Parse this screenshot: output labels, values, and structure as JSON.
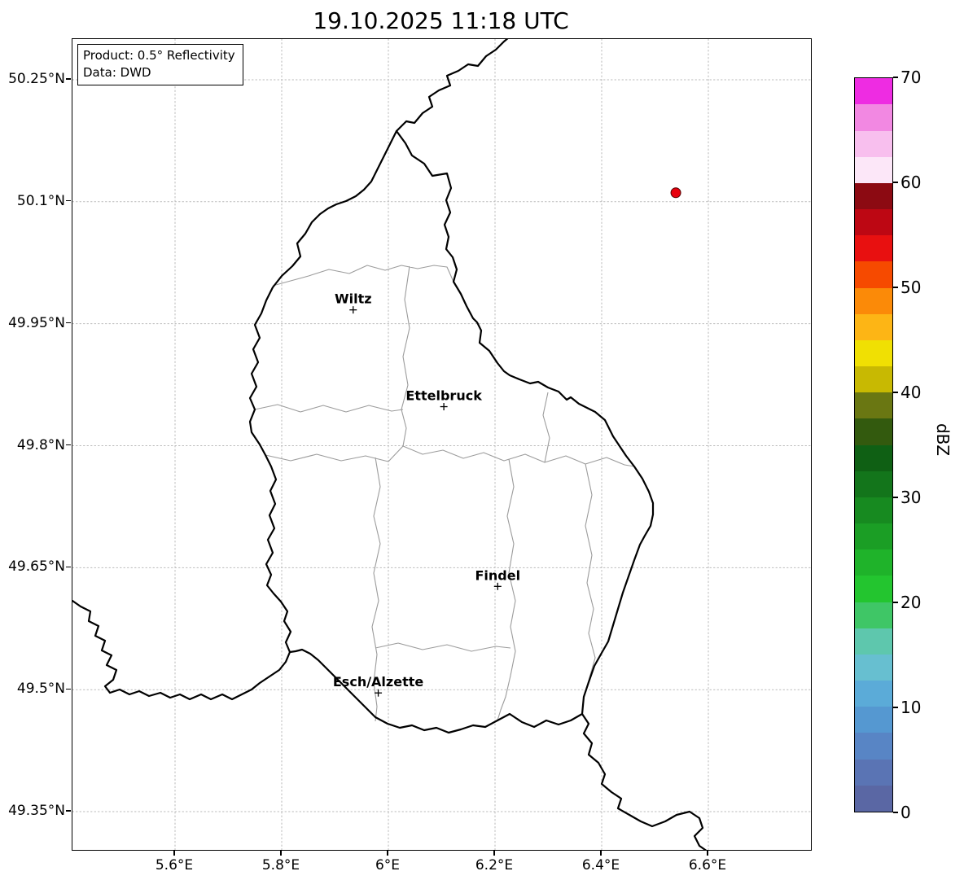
{
  "title": "19.10.2025 11:18 UTC",
  "info_box": {
    "product": "Product: 0.5° Reflectivity",
    "source": "Data: DWD"
  },
  "axes": {
    "y_ticks": [
      {
        "label": "50.25°N",
        "lat": 50.25
      },
      {
        "label": "50.1°N",
        "lat": 50.1
      },
      {
        "label": "49.95°N",
        "lat": 49.95
      },
      {
        "label": "49.8°N",
        "lat": 49.8
      },
      {
        "label": "49.65°N",
        "lat": 49.65
      },
      {
        "label": "49.5°N",
        "lat": 49.5
      },
      {
        "label": "49.35°N",
        "lat": 49.35
      }
    ],
    "x_ticks": [
      {
        "label": "5.6°E",
        "lon": 5.6
      },
      {
        "label": "5.8°E",
        "lon": 5.8
      },
      {
        "label": "6°E",
        "lon": 6.0
      },
      {
        "label": "6.2°E",
        "lon": 6.2
      },
      {
        "label": "6.4°E",
        "lon": 6.4
      },
      {
        "label": "6.6°E",
        "lon": 6.6
      }
    ]
  },
  "cities": [
    {
      "name": "Wiltz",
      "lon": 5.934,
      "lat": 49.967
    },
    {
      "name": "Ettelbruck",
      "lon": 6.104,
      "lat": 49.848
    },
    {
      "name": "Findel",
      "lon": 6.205,
      "lat": 49.627
    },
    {
      "name": "Esch/Alzette",
      "lon": 5.981,
      "lat": 49.496
    }
  ],
  "radar_echoes": [
    {
      "lon": 6.539,
      "lat": 50.111,
      "color": "#e8000d"
    }
  ],
  "colorbar": {
    "label": "dBZ",
    "min": 0,
    "max": 70,
    "step": 2.5,
    "ticks": [
      "0",
      "10",
      "20",
      "30",
      "40",
      "50",
      "60",
      "70"
    ],
    "colors": [
      "#5a67a4",
      "#5a74b4",
      "#5885c5",
      "#5598d1",
      "#5babd8",
      "#67bfd0",
      "#5ec7ad",
      "#3fc666",
      "#23c52f",
      "#1fb32a",
      "#1b9e25",
      "#178a20",
      "#13751b",
      "#0f6014",
      "#335a0e",
      "#6a7712",
      "#c8b902",
      "#f0e003",
      "#fdb515",
      "#fb8a08",
      "#f64a00",
      "#e81010",
      "#bd0713",
      "#8c0a12",
      "#fce7f8",
      "#f8bfee",
      "#f288e2",
      "#ee2ce2"
    ]
  }
}
